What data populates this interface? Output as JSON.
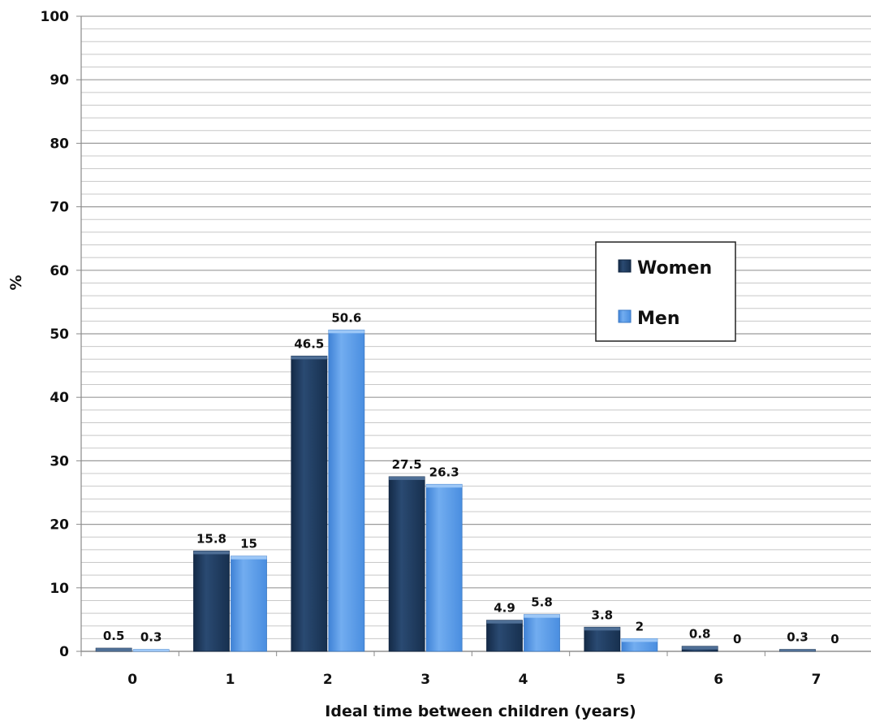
{
  "chart_data": {
    "type": "bar",
    "title": "",
    "xlabel": "Ideal time between children (years)",
    "ylabel": "%",
    "categories": [
      "0",
      "1",
      "2",
      "3",
      "4",
      "5",
      "6",
      "7"
    ],
    "series": [
      {
        "name": "Women",
        "color": "#1f3a5f",
        "values": [
          0.5,
          15.8,
          46.5,
          27.5,
          4.9,
          3.8,
          0.8,
          0.3
        ]
      },
      {
        "name": "Men",
        "color": "#5a9be6",
        "values": [
          0.3,
          15,
          50.6,
          26.3,
          5.8,
          2,
          0,
          0
        ]
      }
    ],
    "ylim": [
      0,
      100
    ],
    "yticks": [
      0,
      10,
      20,
      30,
      40,
      50,
      60,
      70,
      80,
      90,
      100
    ],
    "minor_grid_step": 2,
    "grid": true,
    "legend_position": "right"
  }
}
